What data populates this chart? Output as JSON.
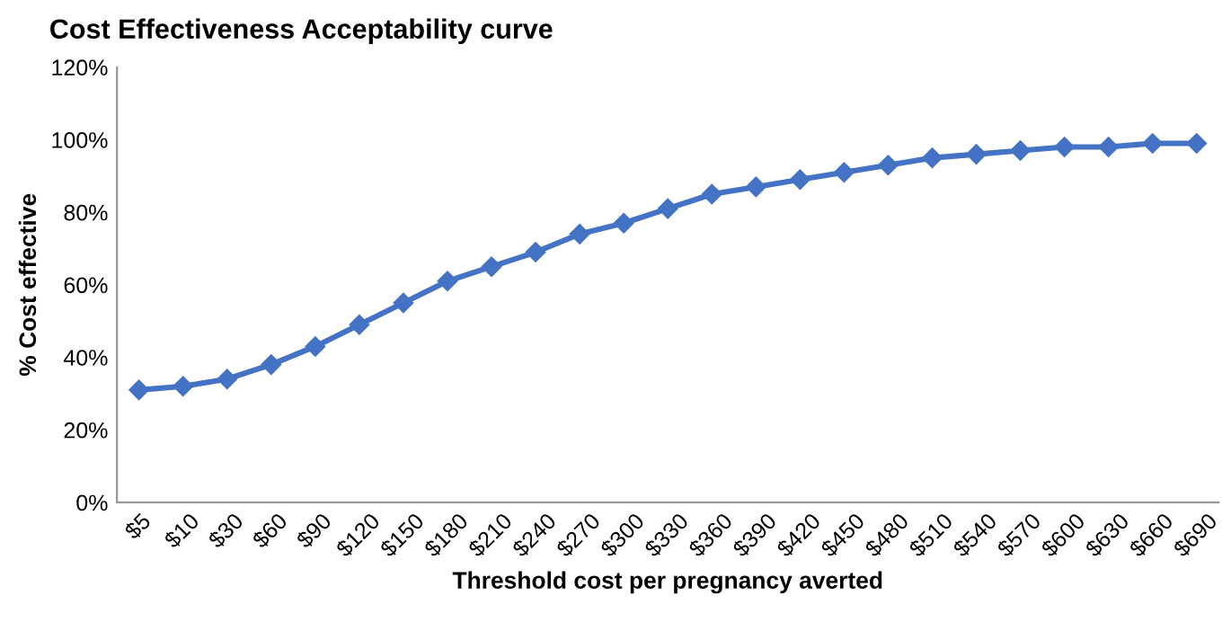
{
  "chart_data": {
    "type": "line",
    "title": "Cost Effectiveness Acceptability curve",
    "xlabel": "Threshold cost per pregnancy averted",
    "ylabel": "% Cost effective",
    "categories": [
      "$5",
      "$10",
      "$30",
      "$60",
      "$90",
      "$120",
      "$150",
      "$180",
      "$210",
      "$240",
      "$270",
      "$300",
      "$330",
      "$360",
      "$390",
      "$420",
      "$450",
      "$480",
      "$510",
      "$540",
      "$570",
      "$600",
      "$630",
      "$660",
      "$690"
    ],
    "series": [
      {
        "color": "#4472c4",
        "values": [
          31,
          32,
          34,
          38,
          43,
          49,
          55,
          61,
          65,
          69,
          74,
          77,
          81,
          85,
          87,
          89,
          91,
          93,
          95,
          96,
          97,
          98,
          98,
          99,
          99
        ]
      }
    ],
    "ylim": [
      0,
      120
    ],
    "yticks": [
      {
        "value": 0,
        "label": "0%"
      },
      {
        "value": 20,
        "label": "20%"
      },
      {
        "value": 40,
        "label": "40%"
      },
      {
        "value": 60,
        "label": "60%"
      },
      {
        "value": 80,
        "label": "80%"
      },
      {
        "value": 100,
        "label": "100%"
      },
      {
        "value": 120,
        "label": "120%"
      }
    ],
    "marker": "diamond",
    "line_style": "solid",
    "grid": false,
    "legend": false
  }
}
